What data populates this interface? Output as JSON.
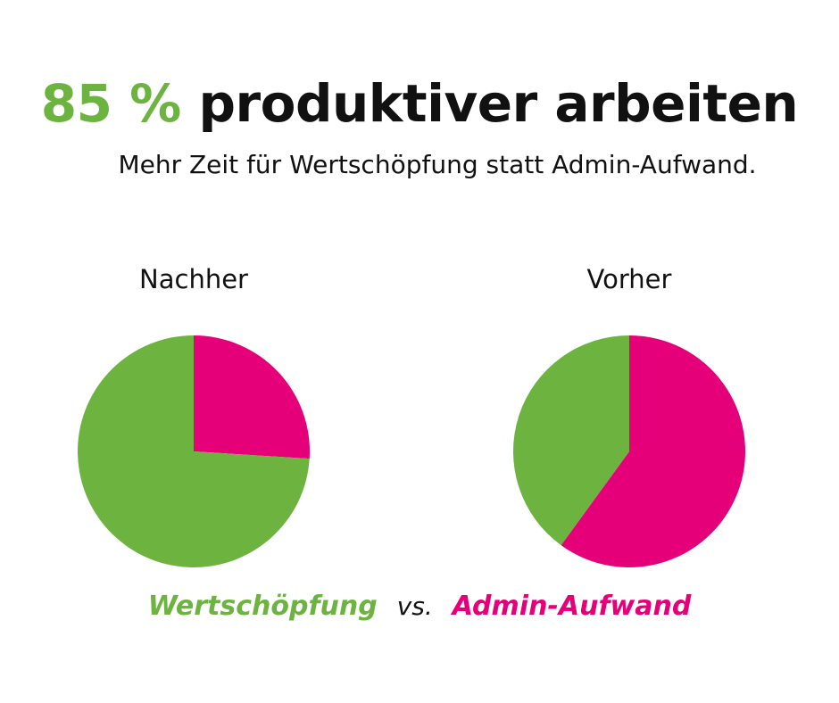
{
  "header": {
    "title_highlight": "85 %",
    "title_rest": "produktiver arbeiten",
    "subtitle": "Mehr Zeit für Wertschöpfung statt Admin-Aufwand."
  },
  "colors": {
    "wertschoepfung": "#6db33f",
    "admin": "#e5007a"
  },
  "legend": {
    "series1": "Wertschöpfung",
    "separator": "vs.",
    "series2": "Admin-Aufwand"
  },
  "chart_data": [
    {
      "type": "pie",
      "title": "Nachher",
      "slices": [
        {
          "name": "Admin-Aufwand",
          "value": 26,
          "color": "#e5007a"
        },
        {
          "name": "Wertschöpfung",
          "value": 74,
          "color": "#6db33f"
        }
      ]
    },
    {
      "type": "pie",
      "title": "Vorher",
      "slices": [
        {
          "name": "Admin-Aufwand",
          "value": 60,
          "color": "#e5007a"
        },
        {
          "name": "Wertschöpfung",
          "value": 40,
          "color": "#6db33f"
        }
      ]
    }
  ]
}
